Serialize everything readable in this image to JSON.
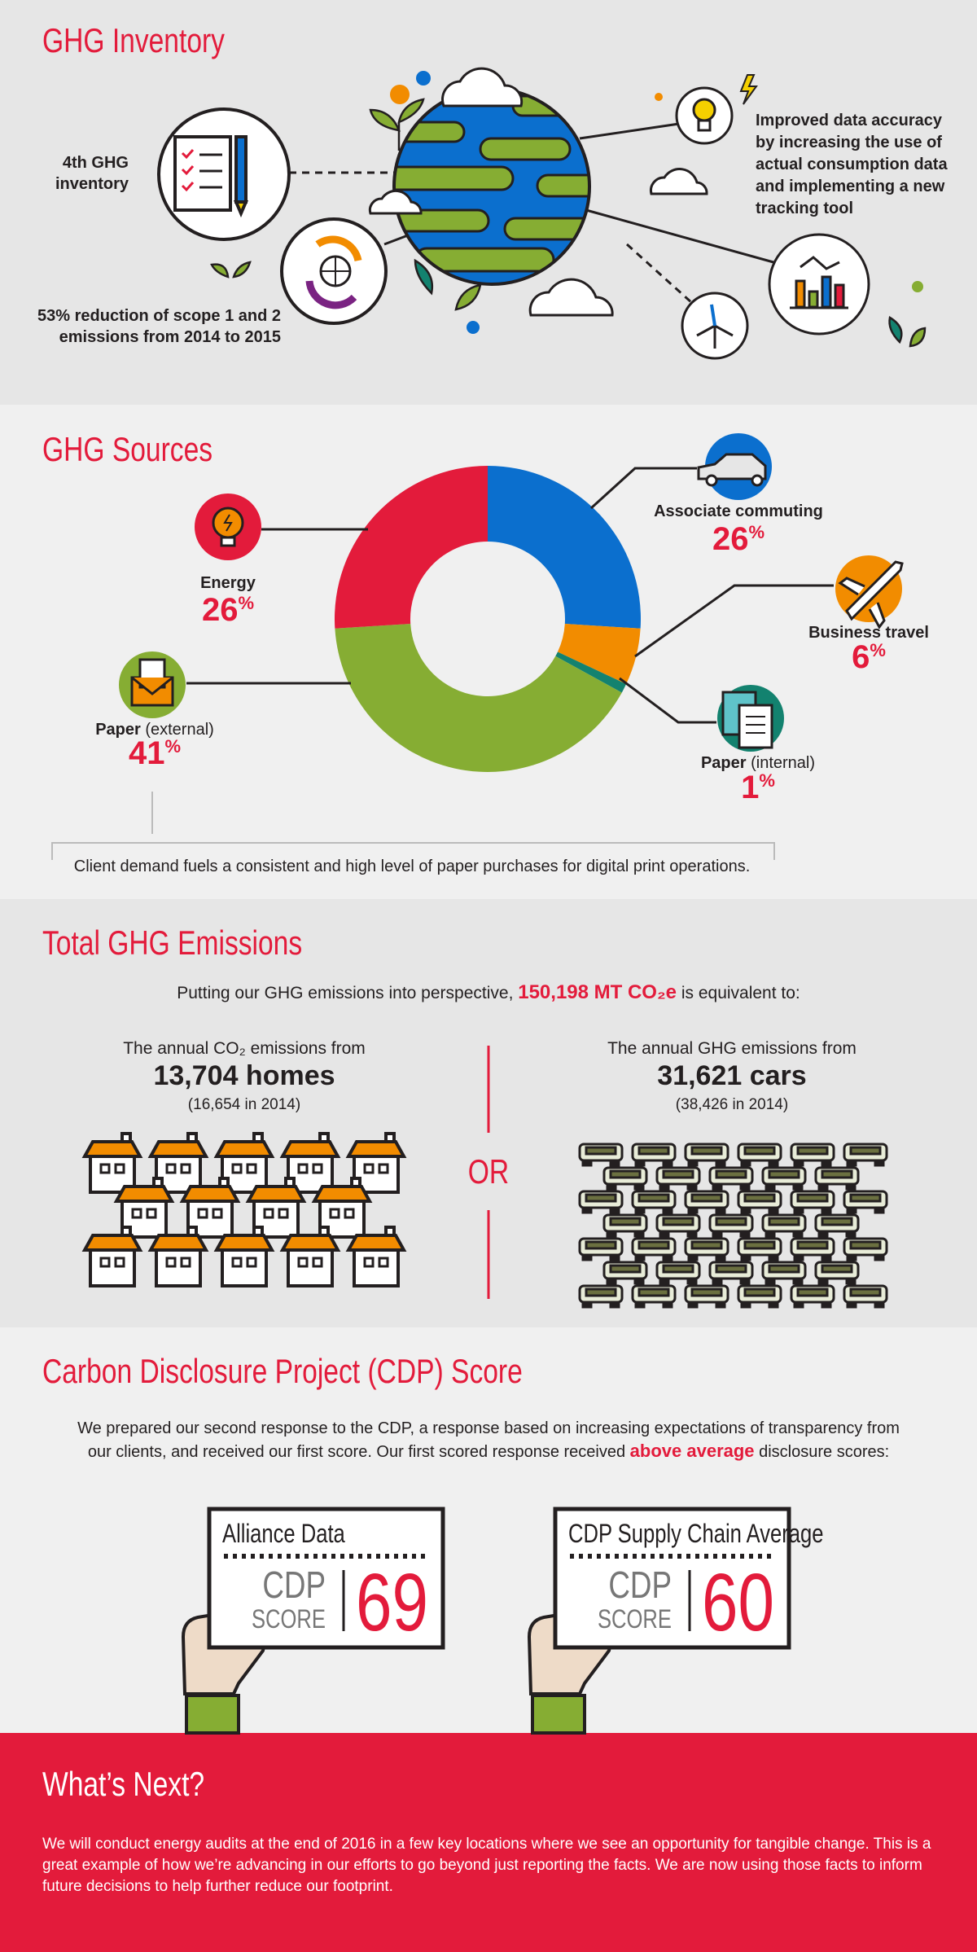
{
  "inventory": {
    "title": "GHG Inventory",
    "first_inventory": [
      "4th GHG",
      "inventory"
    ],
    "reduction": [
      "53% reduction of scope 1 and 2",
      "emissions from 2014 to 2015"
    ],
    "accuracy": [
      "Improved data accuracy",
      "by increasing the use of",
      "actual consumption data",
      "and implementing a new",
      "tracking tool"
    ]
  },
  "sources": {
    "title": "GHG Sources",
    "type": "donut",
    "categories": [
      "Associate commuting",
      "Business travel",
      "Paper (internal)",
      "Paper (external)",
      "Energy"
    ],
    "values": [
      26,
      6,
      1,
      41,
      26
    ],
    "value_labels": [
      "26%",
      "6%",
      "1%",
      "41%",
      "26%"
    ],
    "colors": [
      "#0b6fce",
      "#f28c00",
      "#13826f",
      "#86ad33",
      "#e31b3b"
    ],
    "note": "Client demand fuels a consistent and high level of paper purchases for digital print operations."
  },
  "emissions": {
    "title": "Total GHG Emissions",
    "intro": {
      "before": "Putting our GHG emissions into perspective, ",
      "highlight": "150,198 MT CO₂e",
      "after": " is equivalent to:"
    },
    "homes": {
      "caption": "The annual CO₂ emissions from",
      "value": "13,704 homes",
      "previous": "(16,654 in 2014)"
    },
    "separator": "OR",
    "cars": {
      "caption": "The annual GHG emissions from",
      "value": "31,621 cars",
      "previous": "(38,426 in 2014)"
    }
  },
  "cdp": {
    "title": "Carbon Disclosure Project (CDP) Score",
    "text_before": "We prepared our second response to the CDP, a response based on increasing expectations of transparency from our clients, and received our first score. Our first scored response received ",
    "highlight": "above average",
    "text_after": " disclosure scores:",
    "scores": [
      {
        "name": "Alliance Data",
        "label_top": "CDP",
        "label_bottom": "SCORE",
        "score": 69
      },
      {
        "name": "CDP Supply Chain Average",
        "label_top": "CDP",
        "label_bottom": "SCORE",
        "score": 60
      }
    ]
  },
  "next": {
    "title": "What’s Next?",
    "text": "We will conduct energy audits at the end of 2016 in a few key locations where we see an opportunity for tangible change. This is a great example of how we’re advancing in our efforts to go beyond just reporting the facts. We are now using those facts to inform future decisions to help further reduce our footprint."
  }
}
